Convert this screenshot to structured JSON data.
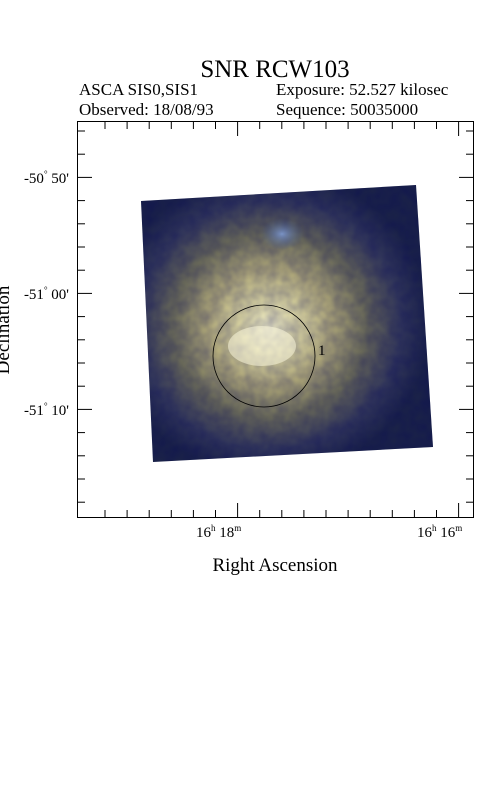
{
  "figure": {
    "title": "SNR RCW103",
    "instrument": "ASCA SIS0,SIS1",
    "observed": "Observed: 18/08/93",
    "exposure": "Exposure: 52.527 kilosec",
    "sequence": "Sequence: 50035000"
  },
  "axes": {
    "xlabel": "Right Ascension",
    "ylabel": "Declination",
    "yticks": [
      {
        "deg": "-50",
        "min": "50'"
      },
      {
        "deg": "-51",
        "min": "00'"
      },
      {
        "deg": "-51",
        "min": "10'"
      }
    ],
    "xticks": [
      {
        "h": "16",
        "m": "18"
      },
      {
        "h": "16",
        "m": "16"
      }
    ]
  },
  "region": {
    "label": "1"
  },
  "colors": {
    "background": "#ffffff",
    "frame": "#000000",
    "image_dark": "#1e2a4e",
    "image_core": "#f4f2c8"
  }
}
